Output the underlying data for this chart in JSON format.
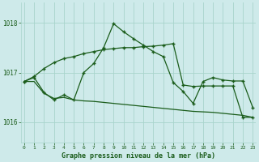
{
  "title": "Graphe pression niveau de la mer (hPa)",
  "background_color": "#ceeaea",
  "grid_color": "#a8d4cc",
  "line_color": "#1a5c1a",
  "x_ticks": [
    0,
    1,
    2,
    3,
    4,
    5,
    6,
    7,
    8,
    9,
    10,
    11,
    12,
    13,
    14,
    15,
    16,
    17,
    18,
    19,
    20,
    21,
    22,
    23
  ],
  "ylim": [
    1015.6,
    1018.4
  ],
  "yticks": [
    1016,
    1017,
    1018
  ],
  "xlim": [
    -0.3,
    23.3
  ],
  "series1_x": [
    0,
    1,
    2,
    3,
    4,
    5,
    6,
    7,
    8,
    9,
    10,
    11,
    12,
    13,
    14,
    15,
    16,
    17,
    18,
    19,
    20,
    21,
    22,
    23
  ],
  "series1_y": [
    1016.82,
    1016.92,
    1017.08,
    1017.2,
    1017.28,
    1017.32,
    1017.38,
    1017.42,
    1017.46,
    1017.48,
    1017.5,
    1017.5,
    1017.52,
    1017.53,
    1017.55,
    1017.58,
    1016.75,
    1016.72,
    1016.73,
    1016.73,
    1016.73,
    1016.73,
    1016.1,
    1016.1
  ],
  "series2_x": [
    0,
    1,
    2,
    3,
    4,
    5,
    6,
    7,
    8,
    9,
    10,
    11,
    12,
    13,
    14,
    15,
    16,
    17,
    18,
    19,
    20,
    21,
    22,
    23
  ],
  "series2_y": [
    1016.82,
    1016.9,
    1016.6,
    1016.45,
    1016.55,
    1016.45,
    1017.0,
    1017.18,
    1017.5,
    1017.98,
    1017.82,
    1017.68,
    1017.55,
    1017.42,
    1017.32,
    1016.8,
    1016.62,
    1016.38,
    1016.82,
    1016.9,
    1016.85,
    1016.83,
    1016.83,
    1016.3
  ],
  "series3_x": [
    0,
    1,
    2,
    3,
    4,
    5,
    6,
    7,
    8,
    9,
    10,
    11,
    12,
    13,
    14,
    15,
    16,
    17,
    18,
    19,
    20,
    21,
    22,
    23
  ],
  "series3_y": [
    1016.82,
    1016.82,
    1016.58,
    1016.48,
    1016.5,
    1016.45,
    1016.43,
    1016.42,
    1016.4,
    1016.38,
    1016.36,
    1016.34,
    1016.32,
    1016.3,
    1016.28,
    1016.26,
    1016.24,
    1016.22,
    1016.21,
    1016.2,
    1016.18,
    1016.16,
    1016.14,
    1016.1
  ]
}
